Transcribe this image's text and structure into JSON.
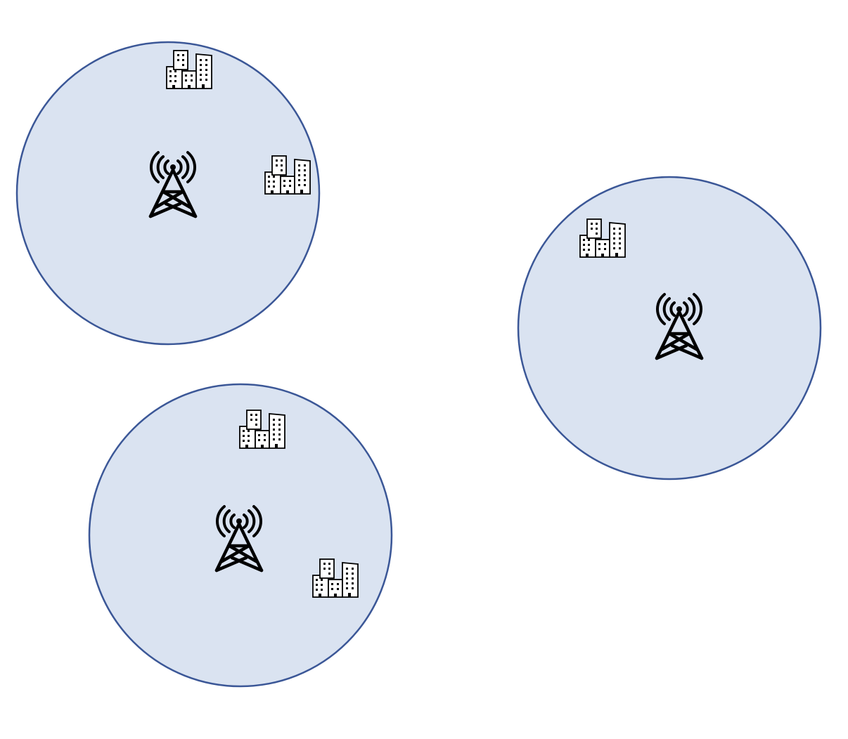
{
  "colors": {
    "background": "#ffffff",
    "coverage_fill": "#dae3f1",
    "coverage_stroke": "#3b5797",
    "icon": "#000000"
  },
  "cells": [
    {
      "id": "cell-1",
      "tower_icon": "cell-tower-icon",
      "buildings": [
        {
          "icon": "office-buildings-icon"
        },
        {
          "icon": "office-buildings-icon"
        }
      ]
    },
    {
      "id": "cell-2",
      "tower_icon": "cell-tower-icon",
      "buildings": [
        {
          "icon": "office-buildings-icon"
        }
      ]
    },
    {
      "id": "cell-3",
      "tower_icon": "cell-tower-icon",
      "buildings": [
        {
          "icon": "office-buildings-icon"
        },
        {
          "icon": "office-buildings-icon"
        }
      ]
    }
  ]
}
